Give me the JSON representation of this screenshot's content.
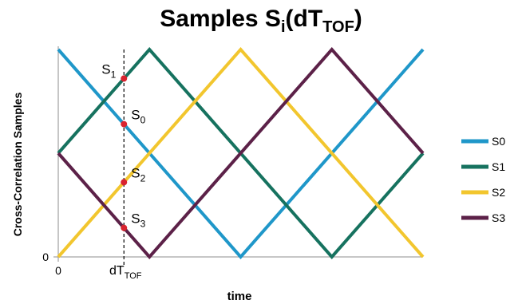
{
  "chart_data": {
    "type": "line",
    "title": {
      "main": "Samples S",
      "sub": "i",
      "paren_open": "(dT",
      "paren_sub": "TOF",
      "paren_close": ")"
    },
    "xlabel": "time",
    "ylabel": "Cross-Correlation Samples",
    "x_ticks": [
      {
        "x": 0,
        "label": "0"
      }
    ],
    "y_ticks": [
      {
        "y": 0,
        "label": "0"
      }
    ],
    "xlim": [
      0,
      4
    ],
    "ylim": [
      0,
      1
    ],
    "grid": false,
    "legend_position": "right",
    "series": [
      {
        "name": "S0",
        "color": "#1f97c9",
        "x": [
          0,
          2,
          4
        ],
        "y": [
          1,
          0,
          1
        ]
      },
      {
        "name": "S1",
        "color": "#16725f",
        "x": [
          0,
          1,
          3,
          4
        ],
        "y": [
          0.5,
          1,
          0,
          0.5
        ]
      },
      {
        "name": "S2",
        "color": "#f2c62e",
        "x": [
          0,
          2,
          4
        ],
        "y": [
          0,
          1,
          0
        ]
      },
      {
        "name": "S3",
        "color": "#5c2148",
        "x": [
          0,
          1,
          3,
          4
        ],
        "y": [
          0.5,
          0,
          1,
          0.5
        ]
      }
    ],
    "marker": {
      "x": 0.72,
      "label": "dT",
      "label_sub": "TOF"
    },
    "sample_points": [
      {
        "name": "S",
        "sub": "1",
        "y": 0.86,
        "color": "#d9242f"
      },
      {
        "name": "S",
        "sub": "0",
        "y": 0.64,
        "color": "#d9242f"
      },
      {
        "name": "S",
        "sub": "2",
        "y": 0.36,
        "color": "#d9242f"
      },
      {
        "name": "S",
        "sub": "3",
        "y": 0.14,
        "color": "#d9242f"
      }
    ]
  }
}
